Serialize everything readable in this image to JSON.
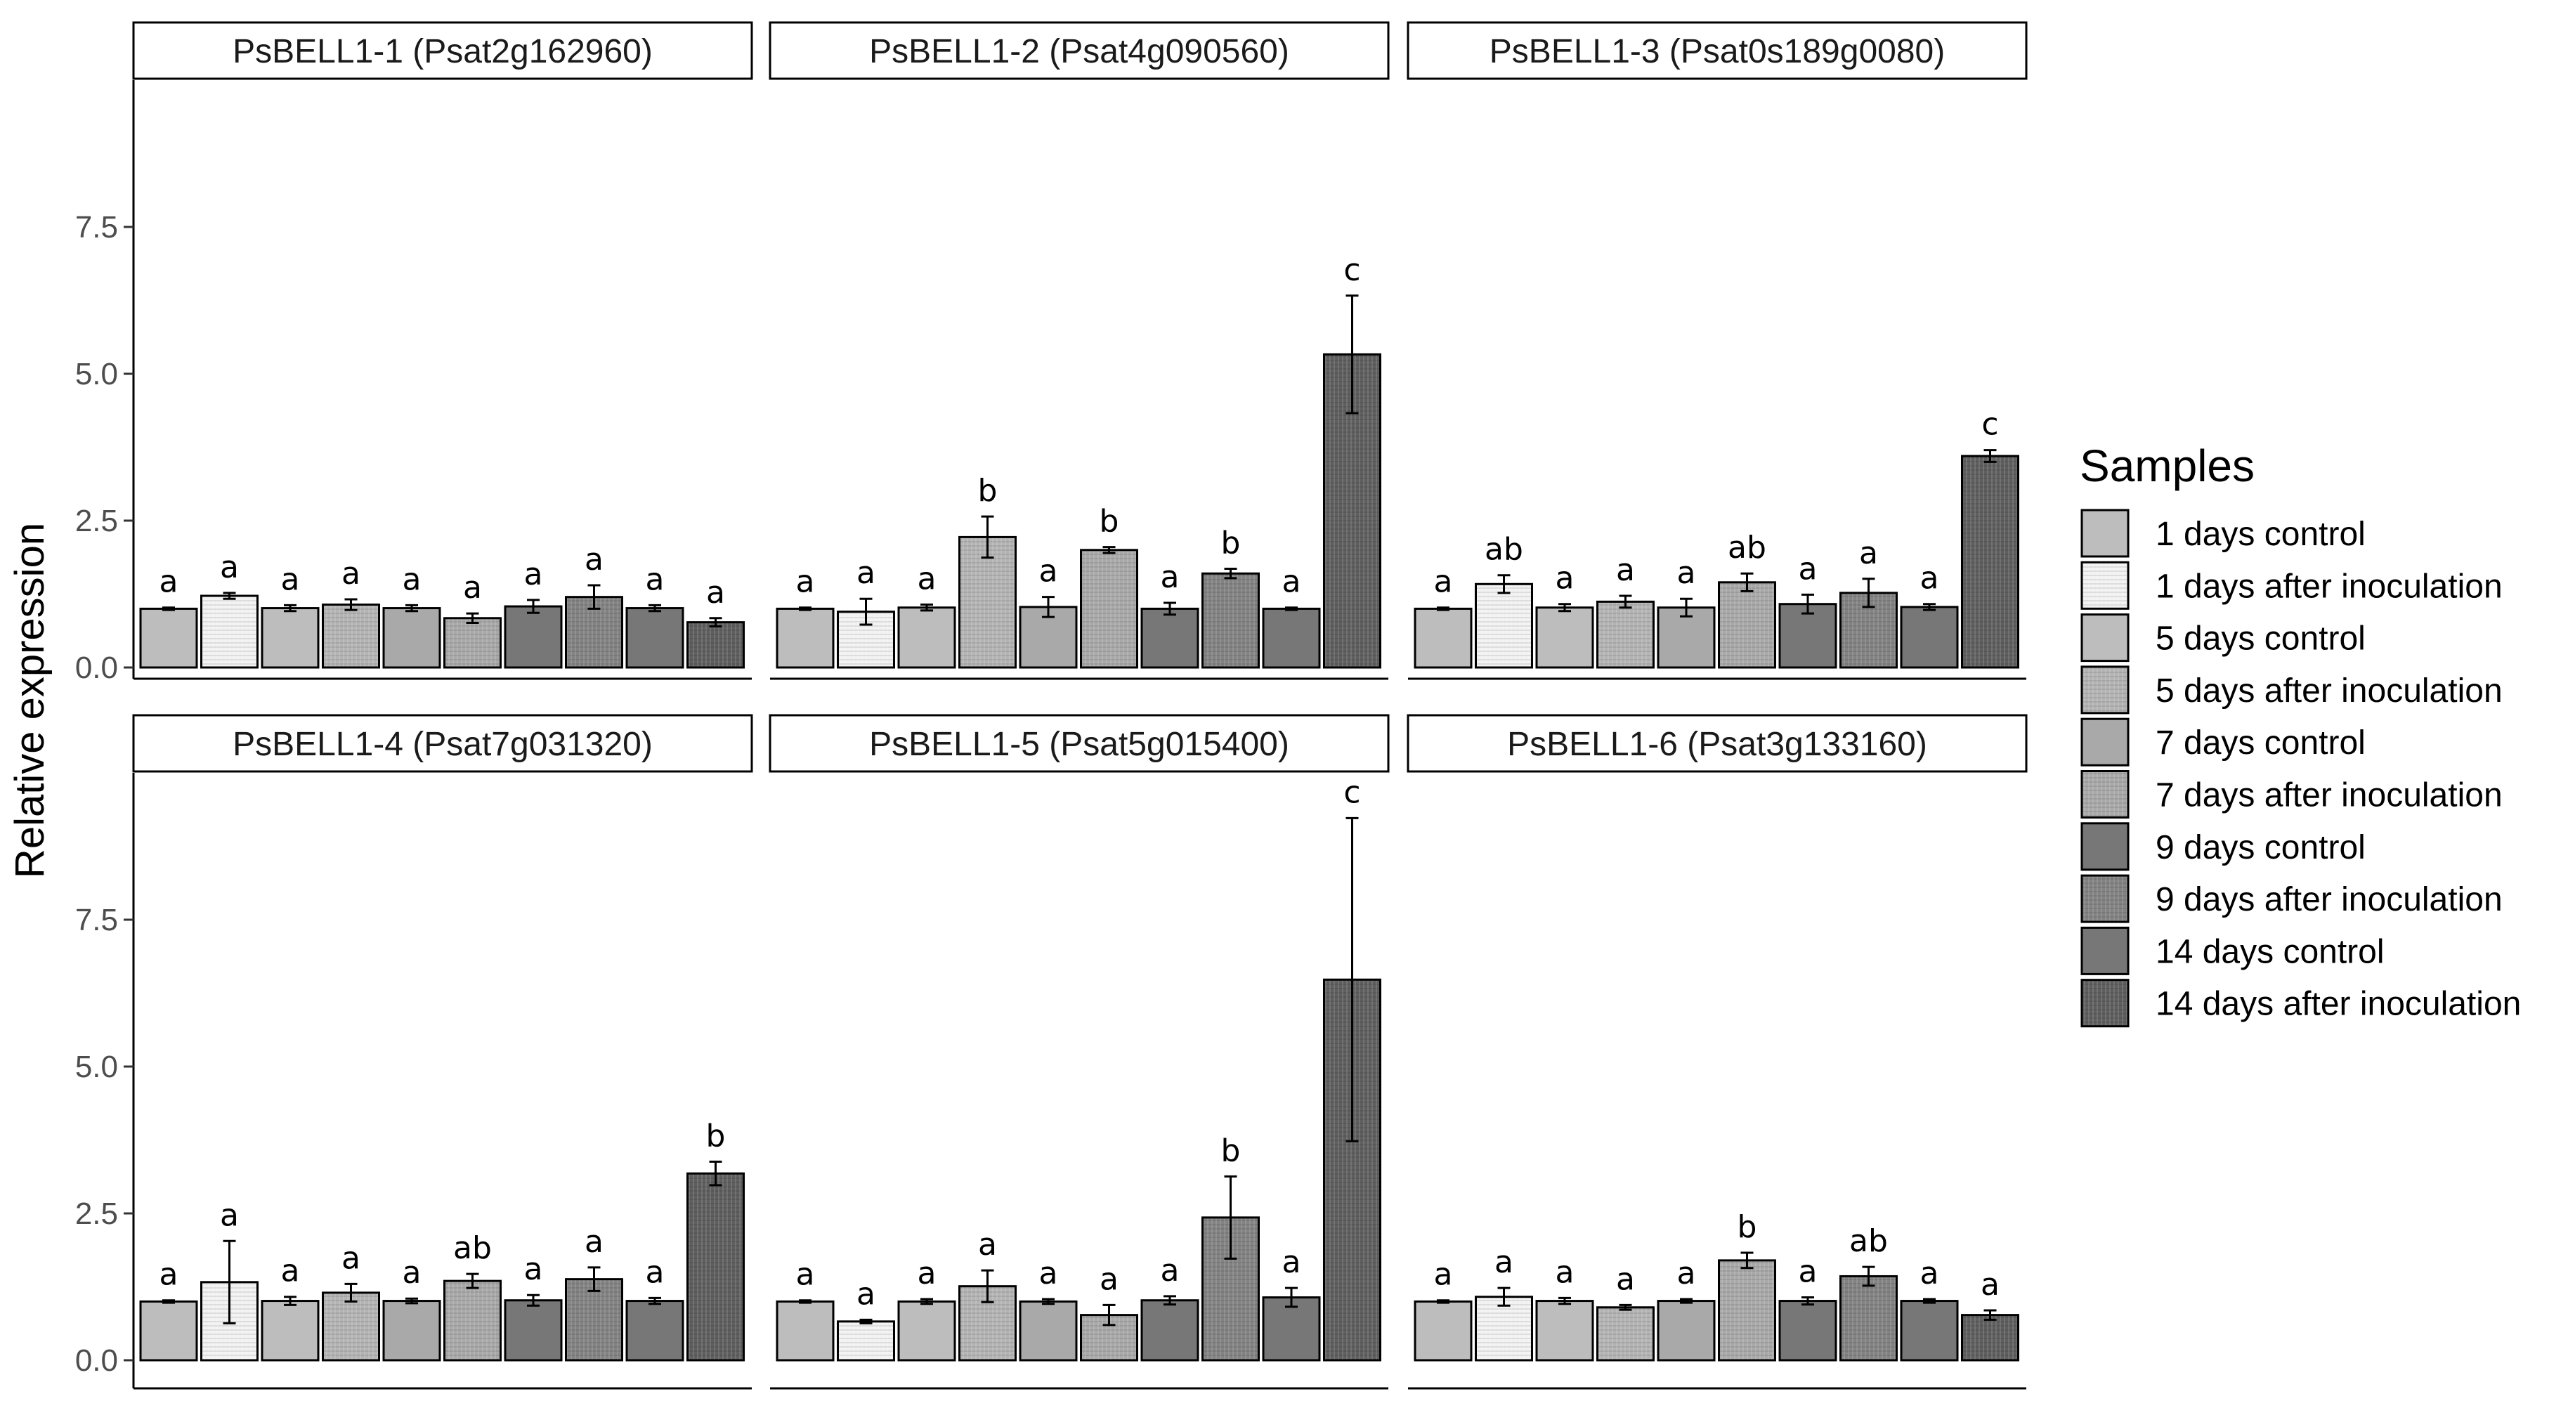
{
  "chart_data": {
    "type": "bar",
    "ylabel": "Relative expression",
    "ylim": [
      0,
      10
    ],
    "yticks": [
      "0.0",
      "2.5",
      "5.0",
      "7.5"
    ],
    "ytick_values": [
      0,
      2.5,
      5.0,
      7.5
    ],
    "grid": false,
    "legend": {
      "title": "Samples",
      "placement": "right",
      "entries": [
        "1 days control",
        "1 days after inoculation",
        "5 days control",
        "5 days after inoculation",
        "7 days control",
        "7 days after inoculation",
        "9 days control",
        "9 days after inoculation",
        "14 days control",
        "14 days after inoculation"
      ]
    },
    "panels": [
      {
        "title": "PsBELL1-1 (Psat2g162960)",
        "values": [
          1.0,
          1.22,
          1.01,
          1.07,
          1.01,
          0.84,
          1.04,
          1.2,
          1.01,
          0.77
        ],
        "errors": [
          0.02,
          0.05,
          0.05,
          0.09,
          0.05,
          0.08,
          0.11,
          0.2,
          0.05,
          0.07
        ],
        "labels": [
          "a",
          "a",
          "a",
          "a",
          "a",
          "a",
          "a",
          "a",
          "a",
          "a"
        ]
      },
      {
        "title": "PsBELL1-2 (Psat4g090560)",
        "values": [
          1.0,
          0.95,
          1.02,
          2.22,
          1.03,
          2.0,
          1.0,
          1.6,
          1.0,
          5.33
        ],
        "errors": [
          0.02,
          0.22,
          0.05,
          0.35,
          0.17,
          0.05,
          0.1,
          0.08,
          0.02,
          1.0
        ],
        "labels": [
          "a",
          "a",
          "a",
          "b",
          "a",
          "b",
          "a",
          "b",
          "a",
          "c"
        ]
      },
      {
        "title": "PsBELL1-3 (Psat0s189g0080)",
        "values": [
          1.0,
          1.42,
          1.02,
          1.12,
          1.02,
          1.45,
          1.08,
          1.27,
          1.03,
          3.6
        ],
        "errors": [
          0.02,
          0.15,
          0.06,
          0.1,
          0.15,
          0.15,
          0.16,
          0.24,
          0.05,
          0.1
        ],
        "labels": [
          "a",
          "ab",
          "a",
          "a",
          "a",
          "ab",
          "a",
          "a",
          "a",
          "c"
        ]
      },
      {
        "title": "PsBELL1-4 (Psat7g031320)",
        "values": [
          1.0,
          1.33,
          1.01,
          1.15,
          1.01,
          1.35,
          1.02,
          1.38,
          1.01,
          3.18
        ],
        "errors": [
          0.02,
          0.7,
          0.07,
          0.15,
          0.04,
          0.12,
          0.09,
          0.2,
          0.05,
          0.2
        ],
        "labels": [
          "a",
          "a",
          "a",
          "a",
          "a",
          "ab",
          "a",
          "a",
          "a",
          "b"
        ]
      },
      {
        "title": "PsBELL1-5 (Psat5g015400)",
        "values": [
          1.0,
          0.66,
          1.0,
          1.26,
          1.0,
          0.77,
          1.02,
          2.43,
          1.07,
          6.48
        ],
        "errors": [
          0.02,
          0.03,
          0.04,
          0.27,
          0.04,
          0.17,
          0.07,
          0.7,
          0.16,
          2.75
        ],
        "labels": [
          "a",
          "a",
          "a",
          "a",
          "a",
          "a",
          "a",
          "b",
          "a",
          "c"
        ]
      },
      {
        "title": "PsBELL1-6 (Psat3g133160)",
        "values": [
          1.0,
          1.08,
          1.01,
          0.9,
          1.01,
          1.7,
          1.01,
          1.43,
          1.01,
          0.77
        ],
        "errors": [
          0.02,
          0.15,
          0.05,
          0.04,
          0.03,
          0.13,
          0.06,
          0.16,
          0.03,
          0.08
        ],
        "labels": [
          "a",
          "a",
          "a",
          "a",
          "a",
          "b",
          "a",
          "ab",
          "a",
          "a"
        ]
      }
    ]
  },
  "colors": {
    "bar_fills": [
      "#bdbdbd",
      "#f2f2f2",
      "#bdbdbd",
      "#b4b4b4",
      "#a9a9a9",
      "#a9a9a9",
      "#777777",
      "#838383",
      "#777777",
      "#5f5f5f"
    ],
    "bar_hatch": [
      false,
      true,
      false,
      true,
      false,
      true,
      false,
      true,
      false,
      true
    ],
    "outline": "#000000",
    "tick_text": "#4d4d4d"
  }
}
